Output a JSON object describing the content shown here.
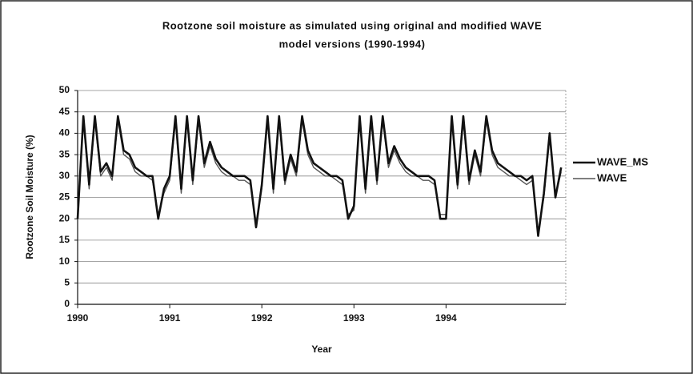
{
  "chart_data": {
    "type": "line",
    "title": "Rootzone soil moisture as simulated using original and modified WAVE",
    "subtitle": "model versions (1990-1994)",
    "x_label": "Year",
    "y_label": "Rootzone Soil Moisture (%)",
    "xlim": [
      1990,
      1995.3
    ],
    "xticks": [
      1990,
      1991,
      1992,
      1993,
      1994
    ],
    "ylim": [
      0,
      50
    ],
    "yticks": [
      0,
      5,
      10,
      15,
      20,
      25,
      30,
      35,
      40,
      45,
      50
    ],
    "grid": true,
    "legend": "right",
    "x": [
      1990,
      1990.0625,
      1990.125,
      1990.1875,
      1990.25,
      1990.3125,
      1990.375,
      1990.4375,
      1990.5,
      1990.5625,
      1990.625,
      1990.6875,
      1990.75,
      1990.8125,
      1990.875,
      1990.9375,
      1991,
      1991.0625,
      1991.125,
      1991.1875,
      1991.25,
      1991.3125,
      1991.375,
      1991.4375,
      1991.5,
      1991.5625,
      1991.625,
      1991.6875,
      1991.75,
      1991.8125,
      1991.875,
      1991.9375,
      1992,
      1992.0625,
      1992.125,
      1992.1875,
      1992.25,
      1992.3125,
      1992.375,
      1992.4375,
      1992.5,
      1992.5625,
      1992.625,
      1992.6875,
      1992.75,
      1992.8125,
      1992.875,
      1992.9375,
      1993,
      1993.0625,
      1993.125,
      1993.1875,
      1993.25,
      1993.3125,
      1993.375,
      1993.4375,
      1993.5,
      1993.5625,
      1993.625,
      1993.6875,
      1993.75,
      1993.8125,
      1993.875,
      1993.9375,
      1994,
      1994.0625,
      1994.125,
      1994.1875,
      1994.25,
      1994.3125,
      1994.375,
      1994.4375,
      1994.5,
      1994.5625,
      1994.625,
      1994.6875,
      1994.75,
      1994.8125,
      1994.875,
      1994.9375,
      1995,
      1995.0625,
      1995.125,
      1995.1875,
      1995.25
    ],
    "series": [
      {
        "name": "WAVE_MS",
        "color": "#111111",
        "width": 2.6,
        "values": [
          20,
          44,
          28,
          44,
          31,
          33,
          30,
          44,
          36,
          35,
          32,
          31,
          30,
          30,
          20,
          27,
          30,
          44,
          27,
          44,
          29,
          44,
          33,
          38,
          34,
          32,
          31,
          30,
          30,
          30,
          29,
          18,
          28,
          44,
          27,
          44,
          29,
          35,
          31,
          44,
          36,
          33,
          32,
          31,
          30,
          30,
          29,
          20,
          23,
          44,
          27,
          44,
          29,
          44,
          33,
          37,
          34,
          32,
          31,
          30,
          30,
          30,
          29,
          20,
          20,
          44,
          28,
          44,
          29,
          36,
          31,
          44,
          36,
          33,
          32,
          31,
          30,
          30,
          29,
          30,
          16,
          26,
          40,
          25,
          32
        ]
      },
      {
        "name": "WAVE",
        "color": "#555555",
        "width": 1.4,
        "values": [
          20,
          43,
          27,
          43,
          30,
          32,
          29,
          43,
          35,
          34,
          31,
          30,
          30,
          29,
          21,
          26,
          29,
          43,
          26,
          43,
          28,
          43,
          32,
          37,
          33,
          31,
          30,
          30,
          29,
          29,
          28,
          19,
          27,
          43,
          26,
          43,
          28,
          34,
          30,
          43,
          35,
          32,
          31,
          30,
          30,
          29,
          28,
          21,
          22,
          43,
          26,
          43,
          28,
          43,
          32,
          36,
          33,
          31,
          30,
          30,
          29,
          29,
          28,
          21,
          21,
          43,
          27,
          43,
          28,
          35,
          30,
          43,
          35,
          32,
          31,
          30,
          30,
          29,
          28,
          29,
          17,
          25,
          39,
          25,
          31
        ]
      }
    ]
  }
}
